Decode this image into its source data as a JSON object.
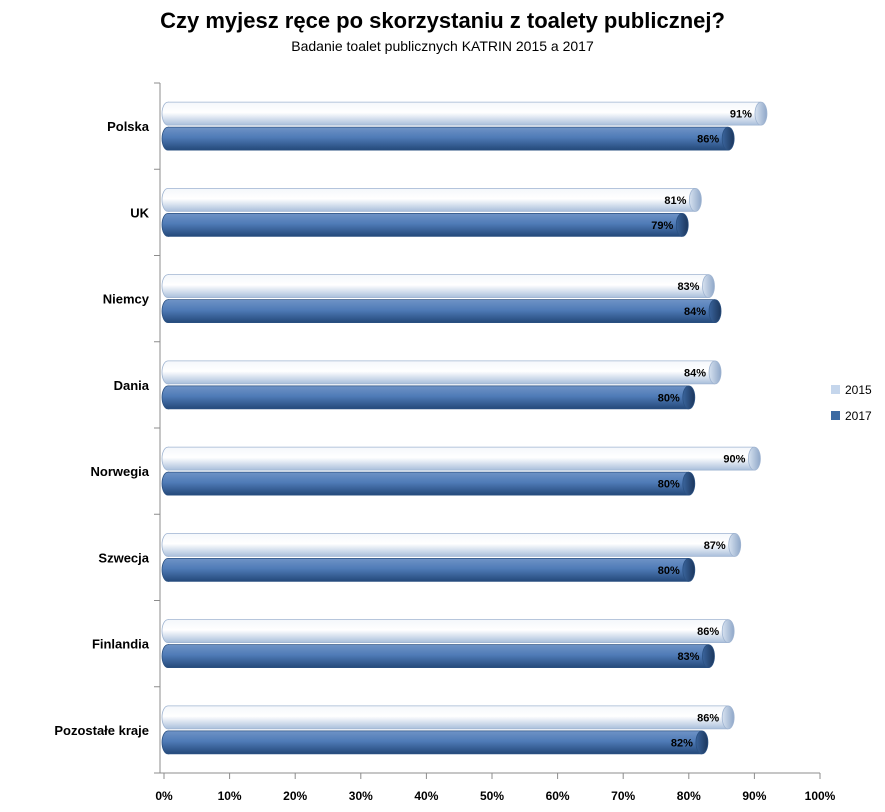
{
  "chart_data": {
    "type": "bar",
    "orientation": "horizontal",
    "title": "Czy myjesz ręce po skorzystaniu z toalety publicznej?",
    "subtitle": "Badanie toalet publicznych KATRIN 2015 a 2017",
    "categories": [
      "Polska",
      "UK",
      "Niemcy",
      "Dania",
      "Norwegia",
      "Szwecja",
      "Finlandia",
      "Pozostałe kraje"
    ],
    "series": [
      {
        "name": "2015",
        "values": [
          91,
          81,
          83,
          84,
          90,
          87,
          86,
          86
        ],
        "labels": [
          "91%",
          "81%",
          "83%",
          "84%",
          "90%",
          "87%",
          "86%",
          "86%"
        ],
        "color": "#dce6f2"
      },
      {
        "name": "2017",
        "values": [
          86,
          79,
          84,
          80,
          80,
          80,
          83,
          82
        ],
        "labels": [
          "86%",
          "79%",
          "84%",
          "80%",
          "80%",
          "80%",
          "83%",
          "82%"
        ],
        "color": "#3d6aa2"
      }
    ],
    "xlim": [
      0,
      100
    ],
    "xticks": [
      0,
      10,
      20,
      30,
      40,
      50,
      60,
      70,
      80,
      90,
      100
    ],
    "xtick_labels": [
      "0%",
      "10%",
      "20%",
      "30%",
      "40%",
      "50%",
      "60%",
      "70%",
      "80%",
      "90%",
      "100%"
    ],
    "legend_position": "right",
    "grid": false
  }
}
